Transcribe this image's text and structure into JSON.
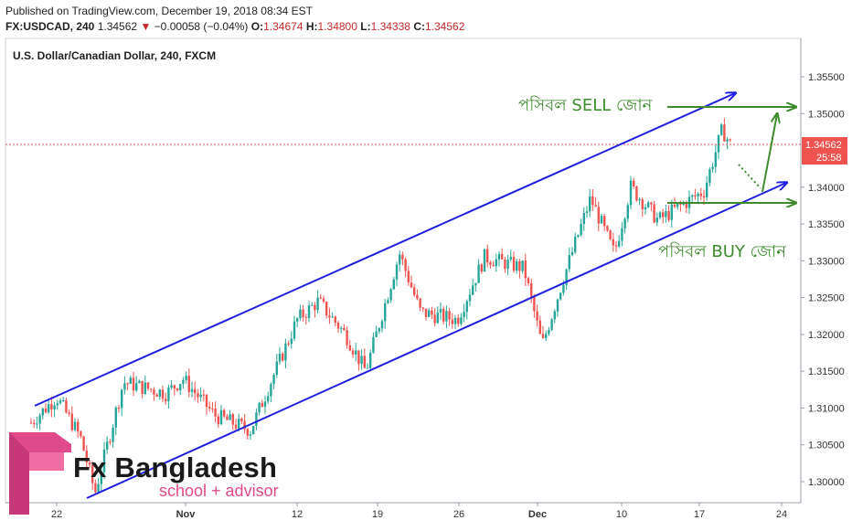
{
  "header": {
    "published": "Published on TradingView.com, December 19, 2018 08:34 EST",
    "symbol": "FX:USDCAD, 240",
    "last": "1.34562",
    "change_arrow": "▼",
    "change": "−0.00058 (−0.04%)",
    "o_label": "O:",
    "o_value": "1.34674",
    "h_label": "H:",
    "h_value": "1.34800",
    "l_label": "L:",
    "l_value": "1.34338",
    "c_label": "C:",
    "c_value": "1.34562"
  },
  "chart_data": {
    "type": "candlestick",
    "title": "U.S. Dollar/Canadian Dollar, 240, FXCM",
    "price_ticks": [
      "1.35500",
      "1.35000",
      "1.34000",
      "1.33500",
      "1.33000",
      "1.32500",
      "1.32000",
      "1.31500",
      "1.31000",
      "1.30500",
      "1.30000"
    ],
    "date_ticks": [
      "22",
      "Nov",
      "12",
      "19",
      "26",
      "Dec",
      "10",
      "17",
      "24"
    ],
    "current_price": "1.34562",
    "countdown": "25:58",
    "ylim": [
      1.2965,
      1.3598
    ],
    "key_points": [
      {
        "date": "Oct 19",
        "close": 1.308
      },
      {
        "date": "Oct 22",
        "close": 1.3115
      },
      {
        "date": "Oct 24",
        "close": 1.306
      },
      {
        "date": "Oct 25",
        "close": 1.2985
      },
      {
        "date": "Oct 29",
        "close": 1.3135
      },
      {
        "date": "Nov 1",
        "close": 1.312
      },
      {
        "date": "Nov 2",
        "close": 1.314
      },
      {
        "date": "Nov 6",
        "close": 1.309
      },
      {
        "date": "Nov 9",
        "close": 1.307
      },
      {
        "date": "Nov 12",
        "close": 1.322
      },
      {
        "date": "Nov 14",
        "close": 1.3245
      },
      {
        "date": "Nov 16",
        "close": 1.32
      },
      {
        "date": "Nov 19",
        "close": 1.315
      },
      {
        "date": "Nov 20",
        "close": 1.331
      },
      {
        "date": "Nov 22",
        "close": 1.323
      },
      {
        "date": "Nov 26",
        "close": 1.322
      },
      {
        "date": "Nov 28",
        "close": 1.3305
      },
      {
        "date": "Nov 30",
        "close": 1.329
      },
      {
        "date": "Dec 3",
        "close": 1.3185
      },
      {
        "date": "Dec 5",
        "close": 1.329
      },
      {
        "date": "Dec 7",
        "close": 1.3385
      },
      {
        "date": "Dec 10",
        "close": 1.331
      },
      {
        "date": "Dec 12",
        "close": 1.34
      },
      {
        "date": "Dec 14",
        "close": 1.3355
      },
      {
        "date": "Dec 17",
        "close": 1.3395
      },
      {
        "date": "Dec 18",
        "close": 1.3478
      },
      {
        "date": "Dec 19",
        "close": 1.34562
      }
    ]
  },
  "annotations": {
    "sell_zone": "পসিবল SELL জোন",
    "buy_zone": "পসিবল BUY জোন"
  },
  "colors": {
    "up": "#26a69a",
    "down": "#ef5350",
    "channel": "#1f1fe0",
    "annotation": "#3d8b2d",
    "price_tag": "#ef5350",
    "logo_text": "#1a1a1a",
    "logo_accent": "#e04a8a"
  },
  "logo": {
    "name": "Fx Bangladesh",
    "tagline": "school + advisor"
  }
}
